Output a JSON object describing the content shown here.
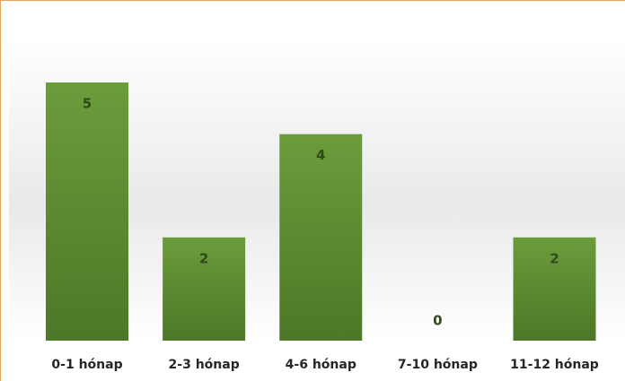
{
  "chart_data": {
    "type": "bar",
    "categories": [
      "0-1 hónap",
      "2-3 hónap",
      "4-6 hónap",
      "7-10 hónap",
      "11-12 hónap"
    ],
    "values": [
      5,
      2,
      4,
      0,
      2
    ],
    "color": "#5f8f32",
    "grid": false
  }
}
